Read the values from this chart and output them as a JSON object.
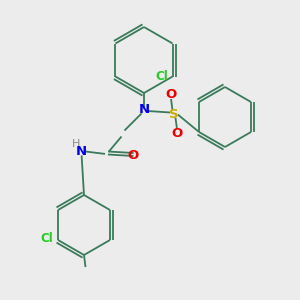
{
  "background_color": "#ececec",
  "bond_color": "#3a7a5a",
  "atom_colors": {
    "N": "#0000ee",
    "O": "#ee0000",
    "S": "#ccaa00",
    "Cl": "#22cc22",
    "H": "#888888",
    "C": "#3a7a5a"
  },
  "figsize": [
    3.0,
    3.0
  ],
  "dpi": 100
}
